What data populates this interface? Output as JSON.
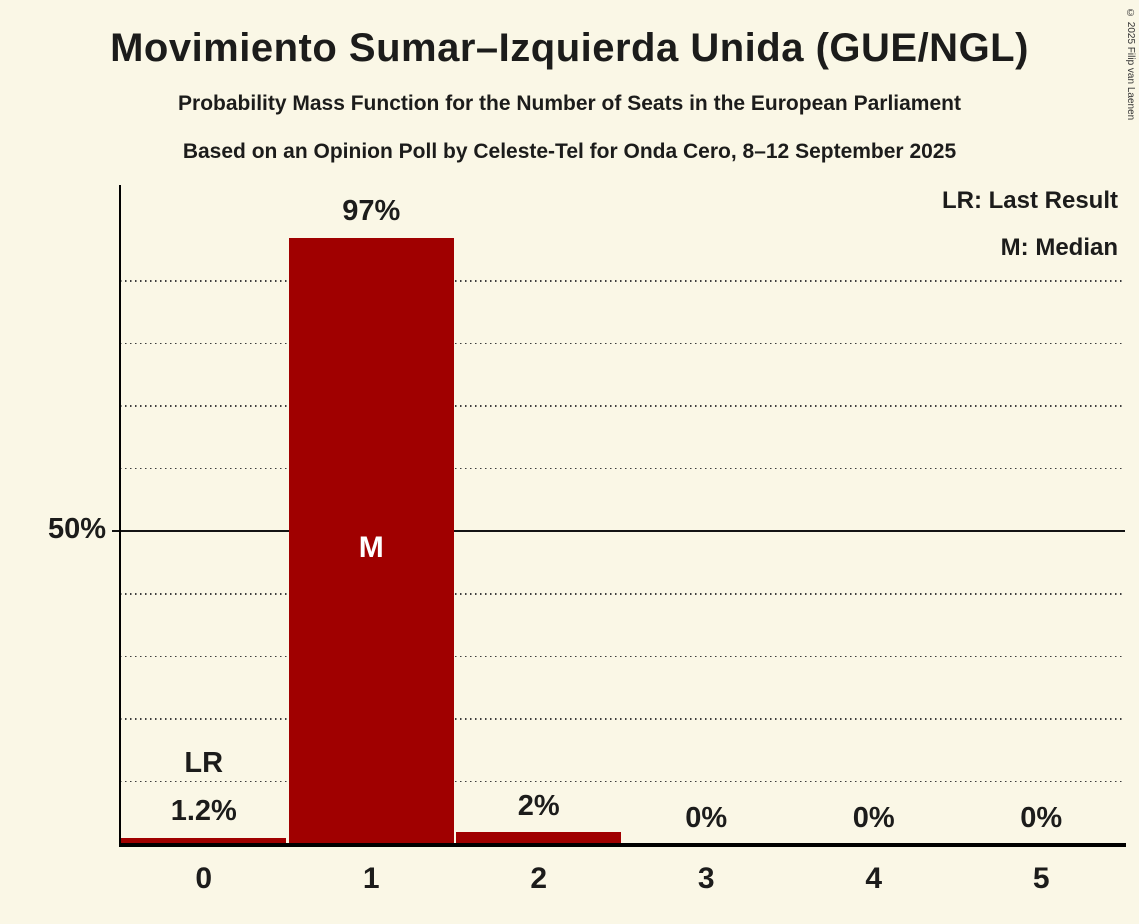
{
  "title": "Movimiento Sumar–Izquierda Unida (GUE/NGL)",
  "subtitle1": "Probability Mass Function for the Number of Seats in the European Parliament",
  "subtitle2": "Based on an Opinion Poll by Celeste-Tel for Onda Cero, 8–12 September 2025",
  "copyright": "© 2025 Filip van Laenen",
  "legend": {
    "lr": "LR: Last Result",
    "m": "M: Median"
  },
  "y_axis_label": "50%",
  "chart_data": {
    "type": "bar",
    "categories": [
      "0",
      "1",
      "2",
      "3",
      "4",
      "5"
    ],
    "values": [
      1.2,
      97,
      2,
      0,
      0,
      0
    ],
    "value_labels": [
      "1.2%",
      "97%",
      "2%",
      "0%",
      "0%",
      "0%"
    ],
    "title": "Probability Mass Function for the Number of Seats in the European Parliament",
    "xlabel": "",
    "ylabel": "",
    "ylim": [
      0,
      105
    ],
    "gridlines_percent": [
      10,
      20,
      30,
      40,
      60,
      70,
      80,
      90
    ],
    "solid_line_percent": 50,
    "grid_style": "dotted",
    "legend_position": "top-right",
    "median_category": "1",
    "last_result_category": "0",
    "annotations": {
      "median_label": "M",
      "last_result_label": "LR"
    },
    "bar_color": "#a00000",
    "background_color": "#faf7e6",
    "text_color": "#1c1c1b"
  }
}
